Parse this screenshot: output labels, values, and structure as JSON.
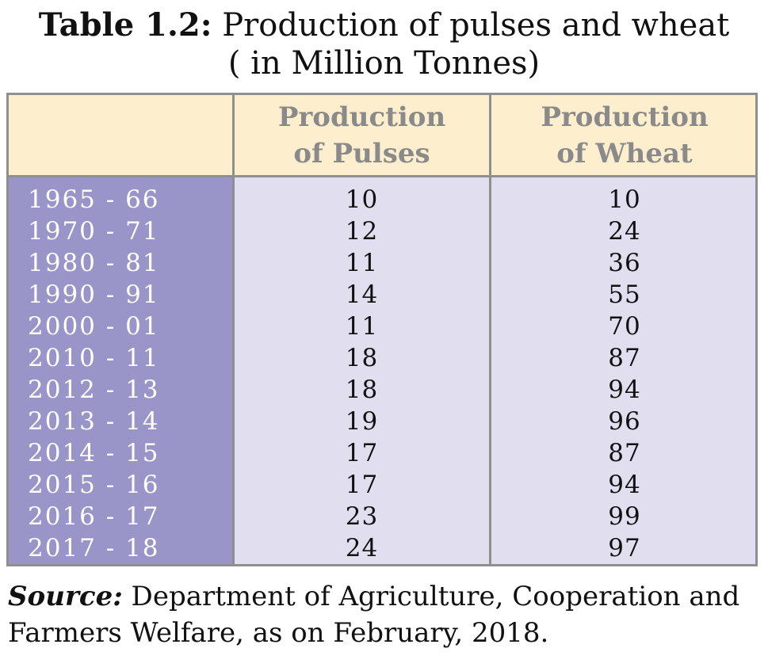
{
  "caption": {
    "label": "Table 1.2:",
    "title": " Production of pulses and wheat",
    "subtitle": "( in Million Tonnes)"
  },
  "table": {
    "headers": {
      "year": "",
      "pulses_line1": "Production",
      "pulses_line2": "of Pulses",
      "wheat_line1": "Production",
      "wheat_line2": "of Wheat"
    },
    "rows": [
      {
        "year": "1965 - 66",
        "pulses": "10",
        "wheat": "10"
      },
      {
        "year": "1970 - 71",
        "pulses": "12",
        "wheat": "24"
      },
      {
        "year": "1980 - 81",
        "pulses": "11",
        "wheat": "36"
      },
      {
        "year": "1990 - 91",
        "pulses": "14",
        "wheat": "55"
      },
      {
        "year": "2000 - 01",
        "pulses": "11",
        "wheat": "70"
      },
      {
        "year": "2010 - 11",
        "pulses": "18",
        "wheat": "87"
      },
      {
        "year": "2012 - 13",
        "pulses": "18",
        "wheat": "94"
      },
      {
        "year": "2013 - 14",
        "pulses": "19",
        "wheat": "96"
      },
      {
        "year": "2014 - 15",
        "pulses": "17",
        "wheat": "87"
      },
      {
        "year": "2015 - 16",
        "pulses": "17",
        "wheat": "94"
      },
      {
        "year": "2016 - 17",
        "pulses": "23",
        "wheat": "99"
      },
      {
        "year": "2017 - 18",
        "pulses": "24",
        "wheat": "97"
      }
    ]
  },
  "source": {
    "label": "Source:",
    "text": " Department of Agriculture, Cooperation and Farmers Welfare, as on February, 2018."
  },
  "colors": {
    "header_bg": "#fdefce",
    "year_col_bg": "#9995c8",
    "body_bg": "#e1def0",
    "grid": "#8f8f8f",
    "header_text": "#8a8a8a"
  }
}
